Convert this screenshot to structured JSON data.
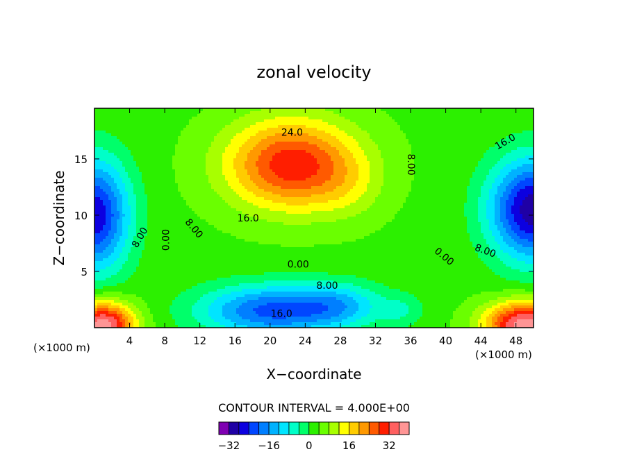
{
  "chart_data": {
    "type": "heatmap",
    "title": "zonal velocity",
    "xlabel": "X−coordinate",
    "ylabel": "Z−coordinate",
    "xunit_left": "(×1000 m)",
    "xunit_right": "(×1000 m)",
    "xlim": [
      0,
      50
    ],
    "ylim": [
      0,
      19.5
    ],
    "x_ticks": [
      "4",
      "8",
      "12",
      "16",
      "20",
      "24",
      "28",
      "32",
      "36",
      "40",
      "44",
      "48"
    ],
    "y_ticks": [
      "5",
      "10",
      "15"
    ],
    "contour_interval_text": "CONTOUR INTERVAL = 4.000E+00",
    "contour_labels": [
      {
        "text": "24.0",
        "x": 22.5,
        "y": 17.3,
        "rot": 0
      },
      {
        "text": "16.0",
        "x": 17.5,
        "y": 9.7,
        "rot": 0
      },
      {
        "text": "8.00",
        "x": 11.3,
        "y": 8.8,
        "rot": 50
      },
      {
        "text": "0.00",
        "x": 8.2,
        "y": 7.8,
        "rot": -90
      },
      {
        "text": "8.00",
        "x": 5.2,
        "y": 8.0,
        "rot": -60
      },
      {
        "text": "0.00",
        "x": 23.2,
        "y": 5.6,
        "rot": 0
      },
      {
        "text": "8.00",
        "x": 26.5,
        "y": 3.7,
        "rot": 0
      },
      {
        "text": "16.0",
        "x": 21.3,
        "y": 1.2,
        "rot": 0
      },
      {
        "text": "8.00",
        "x": 36.0,
        "y": 14.5,
        "rot": 90
      },
      {
        "text": "16.0",
        "x": 46.8,
        "y": 16.5,
        "rot": -30
      },
      {
        "text": "0.00",
        "x": 39.8,
        "y": 6.3,
        "rot": 40
      },
      {
        "text": "8.00",
        "x": 44.5,
        "y": 6.8,
        "rot": 20
      }
    ],
    "colorbar": {
      "ticks": [
        "−32",
        "−16",
        "0",
        "16",
        "32"
      ],
      "tick_values": [
        -32,
        -16,
        0,
        16,
        32
      ],
      "levels": [
        -36,
        -32,
        -28,
        -24,
        -20,
        -16,
        -12,
        -8,
        -4,
        0,
        4,
        8,
        12,
        16,
        20,
        24,
        28,
        32,
        36
      ],
      "colors": [
        "#7f00b2",
        "#1f00a5",
        "#0c00e0",
        "#0046ff",
        "#007fff",
        "#00b2ff",
        "#00e5ff",
        "#00ffc8",
        "#00ff6a",
        "#2cf000",
        "#6aff00",
        "#a8ff00",
        "#ffff00",
        "#ffcc00",
        "#ff9900",
        "#ff5a00",
        "#ff1e00",
        "#ff6060",
        "#ff9595"
      ]
    },
    "centers": [
      {
        "x": 22.5,
        "y": 14.5,
        "a": 28,
        "sx": 7.5,
        "sy": 4.0
      },
      {
        "x": 29.0,
        "y": 12.5,
        "a": 4,
        "sx": 4.0,
        "sy": 3.0
      },
      {
        "x": 20.0,
        "y": 1.5,
        "a": -24,
        "sx": 8.0,
        "sy": 2.3
      },
      {
        "x": 28.0,
        "y": 2.0,
        "a": -12,
        "sx": 5.0,
        "sy": 2.0
      },
      {
        "x": 0.0,
        "y": 10.0,
        "a": -30,
        "sx": 4.0,
        "sy": 5.0
      },
      {
        "x": 50.0,
        "y": 10.5,
        "a": -34,
        "sx": 5.0,
        "sy": 4.5
      },
      {
        "x": 1.0,
        "y": 0.3,
        "a": 36,
        "sx": 3.5,
        "sy": 2.0
      },
      {
        "x": 49.0,
        "y": 0.3,
        "a": 36,
        "sx": 4.5,
        "sy": 2.0
      },
      {
        "x": 35.0,
        "y": 1.5,
        "a": -6,
        "sx": 2.5,
        "sy": 1.5
      }
    ],
    "background_value": 3
  }
}
